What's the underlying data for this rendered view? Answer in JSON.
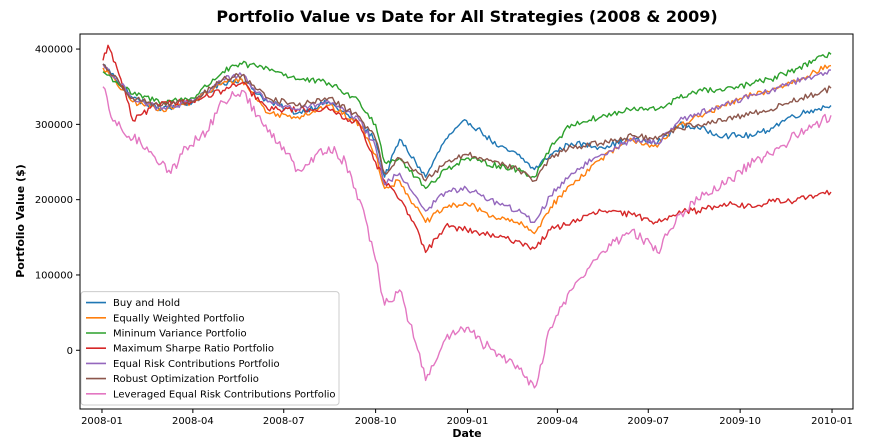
{
  "chart_data": {
    "type": "line",
    "title": "Portfolio Value vs Date for All Strategies (2008 & 2009)",
    "xlabel": "Date",
    "ylabel": "Portfolio Value ($)",
    "x_range": [
      "2007-12-10",
      "2010-01-22"
    ],
    "ylim": [
      -78000,
      420000
    ],
    "x_ticks": [
      {
        "label": "2008-01",
        "date": "2008-01-01"
      },
      {
        "label": "2008-04",
        "date": "2008-04-01"
      },
      {
        "label": "2008-07",
        "date": "2008-07-01"
      },
      {
        "label": "2008-10",
        "date": "2008-10-01"
      },
      {
        "label": "2009-01",
        "date": "2009-01-01"
      },
      {
        "label": "2009-04",
        "date": "2009-04-01"
      },
      {
        "label": "2009-07",
        "date": "2009-07-01"
      },
      {
        "label": "2009-10",
        "date": "2009-10-01"
      },
      {
        "label": "2010-01",
        "date": "2010-01-01"
      }
    ],
    "y_ticks": [
      {
        "label": "0",
        "value": 0
      },
      {
        "label": "100000",
        "value": 100000
      },
      {
        "label": "200000",
        "value": 200000
      },
      {
        "label": "300000",
        "value": 300000
      },
      {
        "label": "400000",
        "value": 400000
      }
    ],
    "grid": false,
    "legend_position": "lower-left",
    "series": [
      {
        "name": "Buy and Hold",
        "color": "#1f77b4",
        "points": [
          [
            "2008-01-02",
            380000
          ],
          [
            "2008-02-01",
            335000
          ],
          [
            "2008-03-01",
            320000
          ],
          [
            "2008-04-01",
            330000
          ],
          [
            "2008-05-01",
            355000
          ],
          [
            "2008-05-20",
            360000
          ],
          [
            "2008-06-15",
            330000
          ],
          [
            "2008-07-15",
            315000
          ],
          [
            "2008-08-15",
            330000
          ],
          [
            "2008-09-15",
            300000
          ],
          [
            "2008-10-01",
            280000
          ],
          [
            "2008-10-10",
            230000
          ],
          [
            "2008-10-25",
            280000
          ],
          [
            "2008-11-10",
            250000
          ],
          [
            "2008-11-20",
            230000
          ],
          [
            "2008-12-10",
            280000
          ],
          [
            "2008-12-31",
            305000
          ],
          [
            "2009-01-15",
            290000
          ],
          [
            "2009-02-01",
            270000
          ],
          [
            "2009-02-20",
            260000
          ],
          [
            "2009-03-09",
            240000
          ],
          [
            "2009-03-25",
            260000
          ],
          [
            "2009-04-15",
            275000
          ],
          [
            "2009-05-15",
            270000
          ],
          [
            "2009-06-15",
            280000
          ],
          [
            "2009-07-10",
            275000
          ],
          [
            "2009-08-01",
            300000
          ],
          [
            "2009-08-20",
            295000
          ],
          [
            "2009-09-15",
            285000
          ],
          [
            "2009-10-15",
            285000
          ],
          [
            "2009-11-01",
            295000
          ],
          [
            "2009-11-20",
            310000
          ],
          [
            "2009-12-15",
            320000
          ],
          [
            "2009-12-31",
            325000
          ]
        ]
      },
      {
        "name": "Equally Weighted Portfolio",
        "color": "#ff7f0e",
        "points": [
          [
            "2008-01-02",
            375000
          ],
          [
            "2008-02-01",
            330000
          ],
          [
            "2008-03-01",
            320000
          ],
          [
            "2008-04-01",
            330000
          ],
          [
            "2008-05-01",
            355000
          ],
          [
            "2008-05-20",
            360000
          ],
          [
            "2008-06-15",
            315000
          ],
          [
            "2008-07-15",
            310000
          ],
          [
            "2008-08-15",
            325000
          ],
          [
            "2008-09-15",
            300000
          ],
          [
            "2008-10-01",
            260000
          ],
          [
            "2008-10-10",
            215000
          ],
          [
            "2008-10-25",
            225000
          ],
          [
            "2008-11-10",
            190000
          ],
          [
            "2008-11-20",
            170000
          ],
          [
            "2008-12-10",
            190000
          ],
          [
            "2008-12-31",
            195000
          ],
          [
            "2009-01-15",
            185000
          ],
          [
            "2009-02-01",
            175000
          ],
          [
            "2009-02-20",
            170000
          ],
          [
            "2009-03-09",
            155000
          ],
          [
            "2009-03-25",
            190000
          ],
          [
            "2009-04-15",
            220000
          ],
          [
            "2009-05-15",
            255000
          ],
          [
            "2009-06-15",
            280000
          ],
          [
            "2009-07-10",
            270000
          ],
          [
            "2009-08-01",
            300000
          ],
          [
            "2009-08-20",
            310000
          ],
          [
            "2009-09-15",
            325000
          ],
          [
            "2009-10-15",
            340000
          ],
          [
            "2009-11-01",
            345000
          ],
          [
            "2009-11-20",
            355000
          ],
          [
            "2009-12-15",
            370000
          ],
          [
            "2009-12-31",
            378000
          ]
        ]
      },
      {
        "name": "Mininum Variance Portfolio",
        "color": "#2ca02c",
        "points": [
          [
            "2008-01-02",
            370000
          ],
          [
            "2008-02-01",
            340000
          ],
          [
            "2008-03-01",
            330000
          ],
          [
            "2008-04-01",
            335000
          ],
          [
            "2008-05-01",
            370000
          ],
          [
            "2008-05-20",
            380000
          ],
          [
            "2008-06-15",
            375000
          ],
          [
            "2008-07-15",
            360000
          ],
          [
            "2008-08-15",
            355000
          ],
          [
            "2008-09-15",
            330000
          ],
          [
            "2008-10-01",
            300000
          ],
          [
            "2008-10-10",
            250000
          ],
          [
            "2008-10-25",
            255000
          ],
          [
            "2008-11-10",
            230000
          ],
          [
            "2008-11-20",
            215000
          ],
          [
            "2008-12-10",
            240000
          ],
          [
            "2008-12-31",
            255000
          ],
          [
            "2009-01-15",
            250000
          ],
          [
            "2009-02-01",
            245000
          ],
          [
            "2009-02-20",
            240000
          ],
          [
            "2009-03-09",
            230000
          ],
          [
            "2009-03-25",
            270000
          ],
          [
            "2009-04-15",
            300000
          ],
          [
            "2009-05-15",
            310000
          ],
          [
            "2009-06-15",
            320000
          ],
          [
            "2009-07-10",
            320000
          ],
          [
            "2009-08-01",
            335000
          ],
          [
            "2009-08-20",
            345000
          ],
          [
            "2009-09-15",
            345000
          ],
          [
            "2009-10-15",
            355000
          ],
          [
            "2009-11-01",
            360000
          ],
          [
            "2009-11-20",
            370000
          ],
          [
            "2009-12-15",
            385000
          ],
          [
            "2009-12-31",
            393000
          ]
        ]
      },
      {
        "name": "Maximum Sharpe Ratio Portfolio",
        "color": "#d62728",
        "points": [
          [
            "2008-01-02",
            385000
          ],
          [
            "2008-01-07",
            405000
          ],
          [
            "2008-01-20",
            360000
          ],
          [
            "2008-02-01",
            305000
          ],
          [
            "2008-03-01",
            330000
          ],
          [
            "2008-04-01",
            330000
          ],
          [
            "2008-05-01",
            345000
          ],
          [
            "2008-05-20",
            355000
          ],
          [
            "2008-06-15",
            320000
          ],
          [
            "2008-07-15",
            320000
          ],
          [
            "2008-08-15",
            320000
          ],
          [
            "2008-09-15",
            300000
          ],
          [
            "2008-10-01",
            250000
          ],
          [
            "2008-10-10",
            225000
          ],
          [
            "2008-10-25",
            200000
          ],
          [
            "2008-11-10",
            165000
          ],
          [
            "2008-11-20",
            130000
          ],
          [
            "2008-12-10",
            165000
          ],
          [
            "2008-12-31",
            160000
          ],
          [
            "2009-01-15",
            155000
          ],
          [
            "2009-02-01",
            150000
          ],
          [
            "2009-02-20",
            145000
          ],
          [
            "2009-03-09",
            135000
          ],
          [
            "2009-03-25",
            160000
          ],
          [
            "2009-04-15",
            170000
          ],
          [
            "2009-05-15",
            185000
          ],
          [
            "2009-06-15",
            180000
          ],
          [
            "2009-07-10",
            170000
          ],
          [
            "2009-08-01",
            185000
          ],
          [
            "2009-08-20",
            185000
          ],
          [
            "2009-09-15",
            195000
          ],
          [
            "2009-10-15",
            190000
          ],
          [
            "2009-11-01",
            198000
          ],
          [
            "2009-11-20",
            198000
          ],
          [
            "2009-12-15",
            205000
          ],
          [
            "2009-12-31",
            210000
          ]
        ]
      },
      {
        "name": "Equal Risk Contributions Portfolio",
        "color": "#9467bd",
        "points": [
          [
            "2008-01-02",
            380000
          ],
          [
            "2008-02-01",
            335000
          ],
          [
            "2008-03-01",
            320000
          ],
          [
            "2008-04-01",
            330000
          ],
          [
            "2008-05-01",
            360000
          ],
          [
            "2008-05-20",
            365000
          ],
          [
            "2008-06-15",
            330000
          ],
          [
            "2008-07-15",
            320000
          ],
          [
            "2008-08-15",
            330000
          ],
          [
            "2008-09-15",
            305000
          ],
          [
            "2008-10-01",
            270000
          ],
          [
            "2008-10-10",
            220000
          ],
          [
            "2008-10-25",
            235000
          ],
          [
            "2008-11-10",
            205000
          ],
          [
            "2008-11-20",
            185000
          ],
          [
            "2008-12-10",
            210000
          ],
          [
            "2008-12-31",
            215000
          ],
          [
            "2009-01-15",
            205000
          ],
          [
            "2009-02-01",
            195000
          ],
          [
            "2009-02-20",
            185000
          ],
          [
            "2009-03-09",
            170000
          ],
          [
            "2009-03-25",
            205000
          ],
          [
            "2009-04-15",
            235000
          ],
          [
            "2009-05-15",
            260000
          ],
          [
            "2009-06-15",
            280000
          ],
          [
            "2009-07-10",
            275000
          ],
          [
            "2009-08-01",
            305000
          ],
          [
            "2009-08-20",
            315000
          ],
          [
            "2009-09-15",
            325000
          ],
          [
            "2009-10-15",
            340000
          ],
          [
            "2009-11-01",
            345000
          ],
          [
            "2009-11-20",
            355000
          ],
          [
            "2009-12-15",
            365000
          ],
          [
            "2009-12-31",
            372000
          ]
        ]
      },
      {
        "name": "Robust Optimization Portfolio",
        "color": "#8c564b",
        "points": [
          [
            "2008-01-02",
            380000
          ],
          [
            "2008-02-01",
            335000
          ],
          [
            "2008-03-01",
            325000
          ],
          [
            "2008-04-01",
            330000
          ],
          [
            "2008-05-01",
            360000
          ],
          [
            "2008-05-20",
            365000
          ],
          [
            "2008-06-15",
            335000
          ],
          [
            "2008-07-15",
            325000
          ],
          [
            "2008-08-15",
            335000
          ],
          [
            "2008-09-15",
            310000
          ],
          [
            "2008-10-01",
            280000
          ],
          [
            "2008-10-10",
            235000
          ],
          [
            "2008-10-25",
            255000
          ],
          [
            "2008-11-10",
            240000
          ],
          [
            "2008-11-20",
            225000
          ],
          [
            "2008-12-10",
            250000
          ],
          [
            "2008-12-31",
            260000
          ],
          [
            "2009-01-15",
            255000
          ],
          [
            "2009-02-01",
            250000
          ],
          [
            "2009-02-20",
            240000
          ],
          [
            "2009-03-09",
            225000
          ],
          [
            "2009-03-25",
            255000
          ],
          [
            "2009-04-15",
            270000
          ],
          [
            "2009-05-15",
            275000
          ],
          [
            "2009-06-15",
            285000
          ],
          [
            "2009-07-10",
            280000
          ],
          [
            "2009-08-01",
            295000
          ],
          [
            "2009-08-20",
            300000
          ],
          [
            "2009-09-15",
            305000
          ],
          [
            "2009-10-15",
            315000
          ],
          [
            "2009-11-01",
            320000
          ],
          [
            "2009-11-20",
            330000
          ],
          [
            "2009-12-15",
            340000
          ],
          [
            "2009-12-31",
            348000
          ]
        ]
      },
      {
        "name": "Leveraged Equal Risk Contributions Portfolio",
        "color": "#e377c2",
        "points": [
          [
            "2008-01-02",
            350000
          ],
          [
            "2008-01-10",
            310000
          ],
          [
            "2008-01-22",
            290000
          ],
          [
            "2008-02-15",
            270000
          ],
          [
            "2008-03-10",
            235000
          ],
          [
            "2008-03-25",
            270000
          ],
          [
            "2008-04-15",
            290000
          ],
          [
            "2008-05-01",
            330000
          ],
          [
            "2008-05-20",
            345000
          ],
          [
            "2008-06-15",
            290000
          ],
          [
            "2008-07-01",
            270000
          ],
          [
            "2008-07-15",
            240000
          ],
          [
            "2008-08-15",
            270000
          ],
          [
            "2008-09-01",
            250000
          ],
          [
            "2008-09-15",
            200000
          ],
          [
            "2008-10-01",
            120000
          ],
          [
            "2008-10-10",
            60000
          ],
          [
            "2008-10-25",
            80000
          ],
          [
            "2008-11-10",
            10000
          ],
          [
            "2008-11-20",
            -40000
          ],
          [
            "2008-12-10",
            15000
          ],
          [
            "2008-12-31",
            30000
          ],
          [
            "2009-01-15",
            10000
          ],
          [
            "2009-02-01",
            -5000
          ],
          [
            "2009-02-20",
            -20000
          ],
          [
            "2009-03-09",
            -50000
          ],
          [
            "2009-03-25",
            30000
          ],
          [
            "2009-04-15",
            80000
          ],
          [
            "2009-05-15",
            130000
          ],
          [
            "2009-06-15",
            160000
          ],
          [
            "2009-07-10",
            130000
          ],
          [
            "2009-08-01",
            180000
          ],
          [
            "2009-08-20",
            200000
          ],
          [
            "2009-09-15",
            220000
          ],
          [
            "2009-10-15",
            250000
          ],
          [
            "2009-11-01",
            260000
          ],
          [
            "2009-11-20",
            280000
          ],
          [
            "2009-12-15",
            300000
          ],
          [
            "2009-12-31",
            312000
          ]
        ]
      }
    ]
  }
}
